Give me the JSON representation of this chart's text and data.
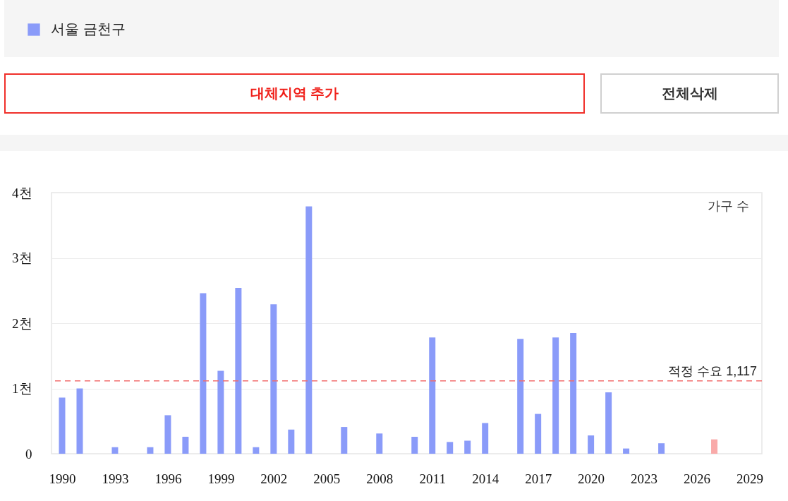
{
  "chart_data": {
    "type": "bar",
    "ylabel": "가구 수",
    "x": [
      1990,
      1991,
      1993,
      1995,
      1996,
      1997,
      1998,
      1999,
      2000,
      2001,
      2002,
      2003,
      2004,
      2006,
      2008,
      2010,
      2011,
      2012,
      2013,
      2014,
      2016,
      2017,
      2018,
      2019,
      2020,
      2021,
      2022,
      2024,
      2027
    ],
    "series": [
      {
        "name": "서울 금천구",
        "color": "#8a9bf9",
        "values": [
          0.86,
          1.0,
          0.1,
          0.1,
          0.59,
          0.26,
          2.46,
          1.27,
          2.54,
          0.1,
          2.29,
          0.37,
          3.79,
          0.41,
          0.31,
          0.26,
          1.78,
          0.18,
          0.2,
          0.47,
          1.76,
          0.61,
          1.78,
          1.85,
          0.28,
          0.94,
          0.08,
          0.16,
          0.22
        ],
        "colors": [
          "#8a9bf9",
          "#8a9bf9",
          "#8a9bf9",
          "#8a9bf9",
          "#8a9bf9",
          "#8a9bf9",
          "#8a9bf9",
          "#8a9bf9",
          "#8a9bf9",
          "#8a9bf9",
          "#8a9bf9",
          "#8a9bf9",
          "#8a9bf9",
          "#8a9bf9",
          "#8a9bf9",
          "#8a9bf9",
          "#8a9bf9",
          "#8a9bf9",
          "#8a9bf9",
          "#8a9bf9",
          "#8a9bf9",
          "#8a9bf9",
          "#8a9bf9",
          "#8a9bf9",
          "#8a9bf9",
          "#8a9bf9",
          "#8a9bf9",
          "#8a9bf9",
          "#f9aaa9"
        ]
      }
    ],
    "xlim": [
      1989.6,
      2029.5
    ],
    "xticks": [
      1990,
      1993,
      1996,
      1999,
      2002,
      2005,
      2008,
      2011,
      2014,
      2017,
      2020,
      2023,
      2026,
      2029
    ],
    "ylim": [
      0,
      4
    ],
    "yticks": [
      0,
      {
        "value": 1,
        "label": "1천"
      },
      {
        "value": 2,
        "label": "2천"
      },
      {
        "value": 3,
        "label": "3천"
      },
      {
        "value": 4,
        "label": "4천"
      }
    ],
    "ref_lines": [
      {
        "axis": "y",
        "value": 1.117,
        "label": "적정 수요 1,117",
        "color": "#f26b6b",
        "line_style": "dashed"
      }
    ],
    "grid": "y",
    "legend": "top left",
    "annotations": [
      "대체지역 추가",
      "전체삭제"
    ]
  }
}
